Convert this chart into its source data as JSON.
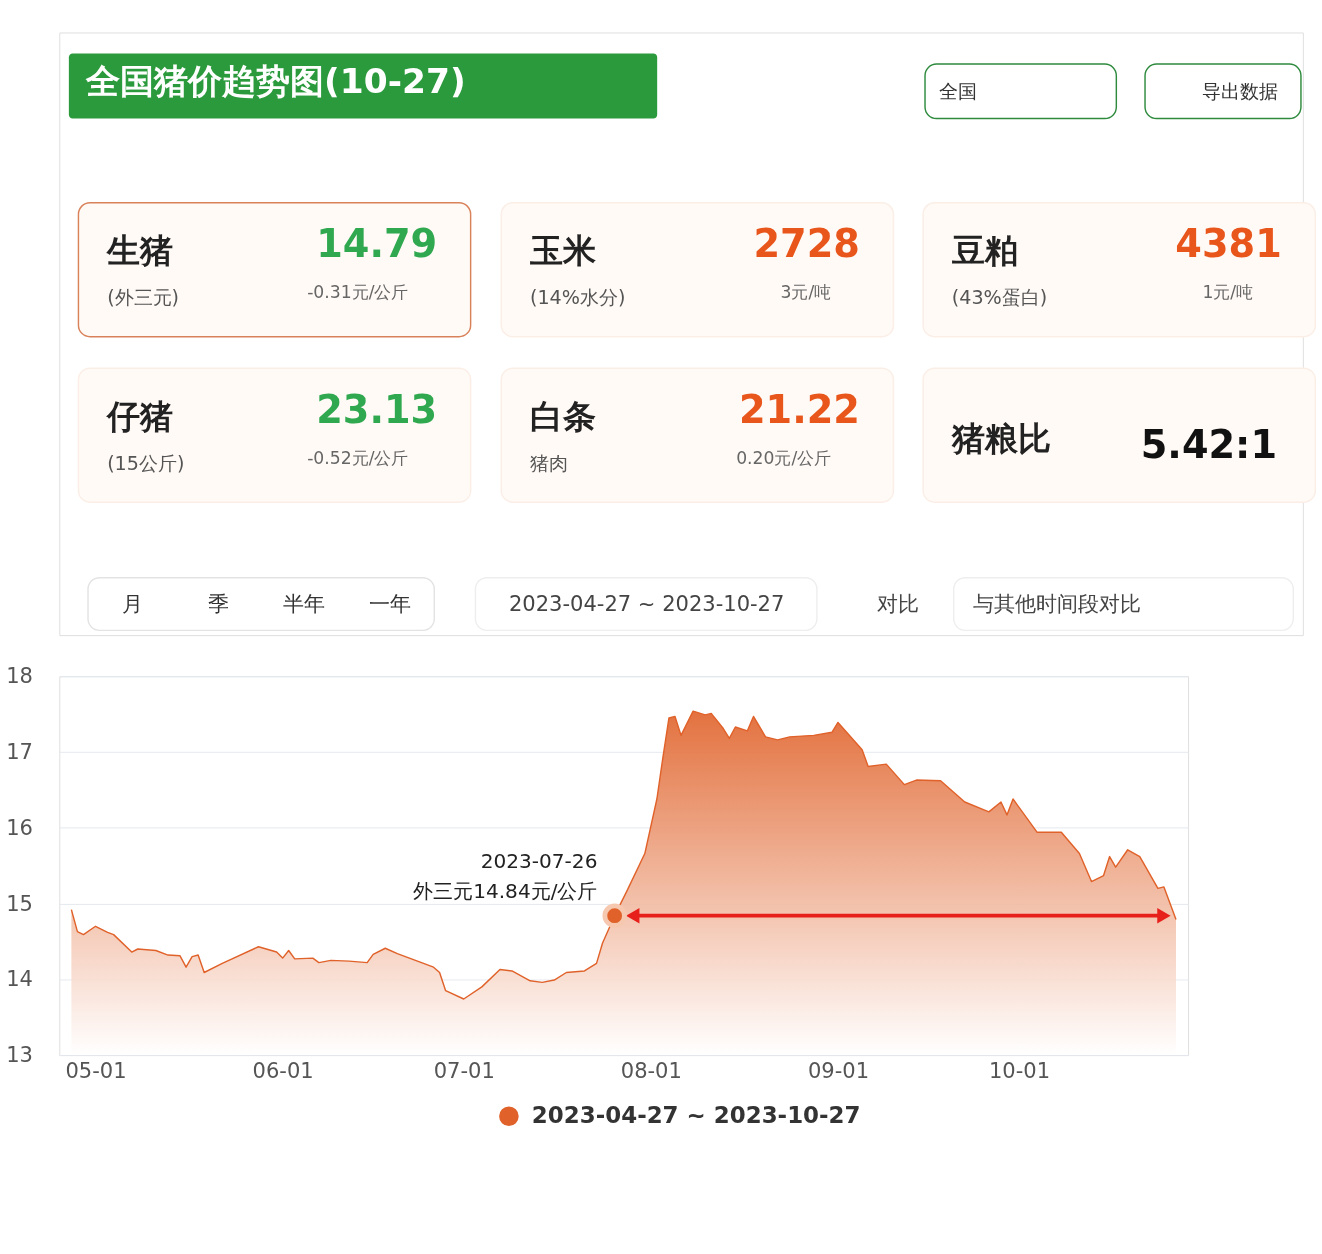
{
  "chart_data": [
    {
      "type": "other",
      "title": "全国猪价趋势图(10-27)",
      "annotations": [
        "全国",
        "导出数据",
        "生猪",
        "(外三元)",
        "14.79",
        "-0.31元/公斤",
        "玉米",
        "(14%水分)",
        "2728",
        "3元/吨",
        "豆粕",
        "(43%蛋白)",
        "4381",
        "1元/吨",
        "仔猪",
        "(15公斤)",
        "23.13",
        "-0.52元/公斤",
        "白条",
        "猪肉",
        "21.22",
        "0.20元/公斤",
        "猪粮比",
        "5.42:1",
        "月",
        "季",
        "半年",
        "一年",
        "2023-04-27 ~ 2023-10-27",
        "对比",
        "与其他时间段对比"
      ],
      "colors": [
        "#333333",
        "#333333",
        "#222222",
        "#555555",
        "#2fa84f",
        "#666666",
        "#222222",
        "#555555",
        "#e8561c",
        "#666666",
        "#222222",
        "#555555",
        "#e8561c",
        "#666666",
        "#222222",
        "#555555",
        "#2fa84f",
        "#666666",
        "#222222",
        "#555555",
        "#e8561c",
        "#666666",
        "#222222",
        "#111111",
        "#333333",
        "#333333",
        "#333333",
        "#333333",
        "#444444",
        "#444444",
        "#444444"
      ]
    },
    {
      "type": "area",
      "ylim": [
        13,
        18
      ],
      "yticks": [
        13,
        14,
        15,
        16,
        17,
        18
      ],
      "xlim": [
        "2023-04-25",
        "2023-10-29"
      ],
      "xticks": [
        {
          "value": "2023-05-01",
          "label": "05-01"
        },
        {
          "value": "2023-06-01",
          "label": "06-01"
        },
        {
          "value": "2023-07-01",
          "label": "07-01"
        },
        {
          "value": "2023-08-01",
          "label": "08-01"
        },
        {
          "value": "2023-09-01",
          "label": "09-01"
        },
        {
          "value": "2023-10-01",
          "label": "10-01"
        }
      ],
      "grid": "y",
      "legend": "bottom",
      "annotations": [
        {
          "text": "2023-07-26\n外三元14.84元/公斤",
          "x": "2023-07-26",
          "y": 14.84
        }
      ],
      "series": [
        {
          "name": "2023-04-27 ~ 2023-10-27",
          "type": "area",
          "color": "#e0622a",
          "x": [
            "2023-04-27",
            "2023-04-28",
            "2023-04-29",
            "2023-05-01",
            "2023-05-03",
            "2023-05-04",
            "2023-05-07",
            "2023-05-08",
            "2023-05-11",
            "2023-05-13",
            "2023-05-15",
            "2023-05-16",
            "2023-05-17",
            "2023-05-18",
            "2023-05-19",
            "2023-05-22",
            "2023-05-28",
            "2023-05-31",
            "2023-06-01",
            "2023-06-02",
            "2023-06-03",
            "2023-06-06",
            "2023-06-07",
            "2023-06-09",
            "2023-06-12",
            "2023-06-15",
            "2023-06-16",
            "2023-06-18",
            "2023-06-20",
            "2023-06-26",
            "2023-06-27",
            "2023-06-28",
            "2023-07-01",
            "2023-07-04",
            "2023-07-07",
            "2023-07-09",
            "2023-07-12",
            "2023-07-14",
            "2023-07-16",
            "2023-07-18",
            "2023-07-21",
            "2023-07-23",
            "2023-07-24",
            "2023-07-26",
            "2023-07-28",
            "2023-07-31",
            "2023-08-02",
            "2023-08-03",
            "2023-08-04",
            "2023-08-05",
            "2023-08-06",
            "2023-08-08",
            "2023-08-10",
            "2023-08-11",
            "2023-08-13",
            "2023-08-14",
            "2023-08-15",
            "2023-08-17",
            "2023-08-18",
            "2023-08-20",
            "2023-08-22",
            "2023-08-24",
            "2023-08-28",
            "2023-08-31",
            "2023-09-01",
            "2023-09-05",
            "2023-09-06",
            "2023-09-09",
            "2023-09-12",
            "2023-09-14",
            "2023-09-18",
            "2023-09-22",
            "2023-09-26",
            "2023-09-28",
            "2023-09-29",
            "2023-09-30",
            "2023-10-04",
            "2023-10-08",
            "2023-10-11",
            "2023-10-13",
            "2023-10-15",
            "2023-10-16",
            "2023-10-17",
            "2023-10-19",
            "2023-10-21",
            "2023-10-24",
            "2023-10-25",
            "2023-10-27"
          ],
          "values": [
            14.92,
            14.63,
            14.59,
            14.7,
            14.62,
            14.59,
            14.36,
            14.4,
            14.38,
            14.32,
            14.31,
            14.16,
            14.3,
            14.32,
            14.09,
            14.21,
            14.43,
            14.36,
            14.28,
            14.38,
            14.27,
            14.28,
            14.22,
            14.25,
            14.24,
            14.22,
            14.33,
            14.41,
            14.34,
            14.16,
            14.09,
            13.85,
            13.74,
            13.9,
            14.13,
            14.11,
            13.98,
            13.96,
            13.99,
            14.09,
            14.11,
            14.21,
            14.48,
            14.84,
            15.16,
            15.66,
            16.38,
            16.93,
            17.45,
            17.47,
            17.22,
            17.54,
            17.49,
            17.51,
            17.31,
            17.18,
            17.33,
            17.28,
            17.47,
            17.2,
            17.16,
            17.2,
            17.22,
            17.26,
            17.39,
            17.03,
            16.81,
            16.84,
            16.57,
            16.63,
            16.62,
            16.34,
            16.21,
            16.34,
            16.17,
            16.38,
            15.94,
            15.94,
            15.66,
            15.29,
            15.37,
            15.62,
            15.48,
            15.71,
            15.62,
            15.2,
            15.22,
            14.79
          ]
        },
        {
          "type": "line",
          "color": "#e8201c",
          "marker": "triangle",
          "x": [
            "2023-07-29",
            "2023-10-25"
          ],
          "values": [
            14.84,
            14.84
          ]
        },
        {
          "type": "scatter",
          "color": "#e0622a",
          "marker": "circle",
          "x": [
            "2023-07-26"
          ],
          "values": [
            14.84
          ]
        }
      ]
    }
  ]
}
